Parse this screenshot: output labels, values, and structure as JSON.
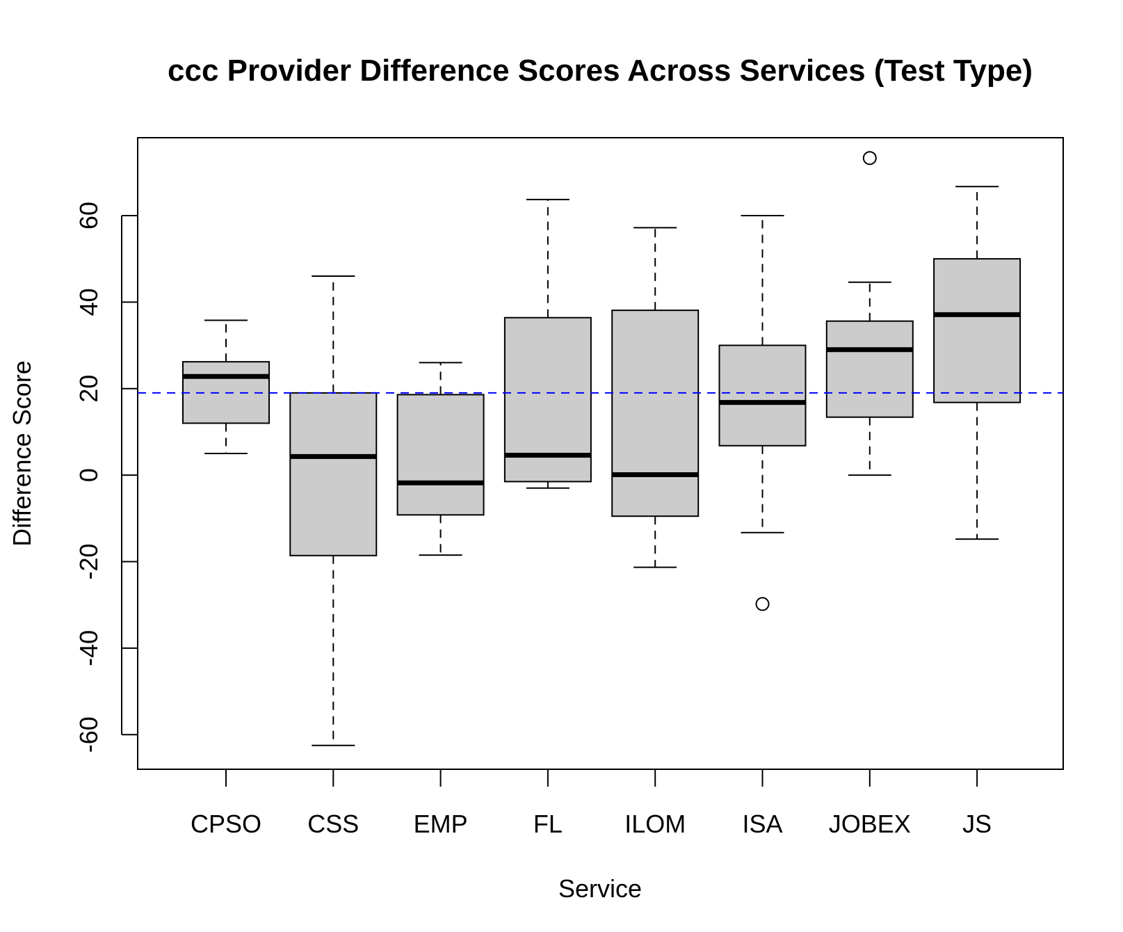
{
  "chart_data": {
    "type": "box",
    "title": "ccc Provider Difference Scores Across Services (Test Type)",
    "xlabel": "Service",
    "ylabel": "Difference Score",
    "ylim": [
      -68,
      78
    ],
    "yticks": [
      -60,
      -40,
      -20,
      0,
      20,
      40,
      60
    ],
    "yticklabels": [
      "-60",
      "-40",
      "-20",
      "0",
      "20",
      "40",
      "60"
    ],
    "reference_line": {
      "value": 19,
      "color": "#0000ff",
      "style": "dashed"
    },
    "box_fill": "#cccccc",
    "categories": [
      "CPSO",
      "CSS",
      "EMP",
      "FL",
      "ILOM",
      "ISA",
      "JOBEX",
      "JS"
    ],
    "boxes": [
      {
        "name": "CPSO",
        "whisker_low": 5,
        "q1": 12,
        "median": 22.8,
        "q3": 26.2,
        "whisker_high": 35.8,
        "outliers": []
      },
      {
        "name": "CSS",
        "whisker_low": -62.5,
        "q1": -18.6,
        "median": 4.3,
        "q3": 19,
        "whisker_high": 46,
        "outliers": []
      },
      {
        "name": "EMP",
        "whisker_low": -18.5,
        "q1": -9.2,
        "median": -1.8,
        "q3": 18.6,
        "whisker_high": 26,
        "outliers": []
      },
      {
        "name": "FL",
        "whisker_low": -3,
        "q1": -1.5,
        "median": 4.6,
        "q3": 36.4,
        "whisker_high": 63.7,
        "outliers": []
      },
      {
        "name": "ILOM",
        "whisker_low": -21.3,
        "q1": -9.5,
        "median": 0.1,
        "q3": 38.1,
        "whisker_high": 57.2,
        "outliers": []
      },
      {
        "name": "ISA",
        "whisker_low": -13.3,
        "q1": 6.8,
        "median": 16.8,
        "q3": 30,
        "whisker_high": 60,
        "outliers": [
          -29.8
        ]
      },
      {
        "name": "JOBEX",
        "whisker_low": 0,
        "q1": 13.4,
        "median": 29,
        "q3": 35.6,
        "whisker_high": 44.6,
        "outliers": [
          73.3
        ]
      },
      {
        "name": "JS",
        "whisker_low": -14.8,
        "q1": 16.8,
        "median": 37.1,
        "q3": 50,
        "whisker_high": 66.7,
        "outliers": []
      }
    ]
  }
}
